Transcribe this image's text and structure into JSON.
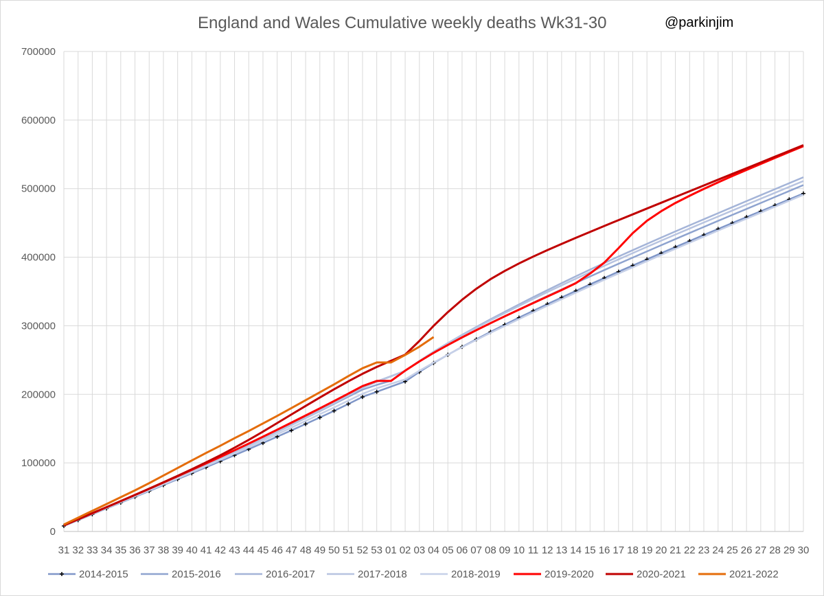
{
  "chart_data": {
    "type": "line",
    "title": "England and Wales Cumulative weekly deaths Wk31-30",
    "annotation": "@parkinjim",
    "categories": [
      "31",
      "32",
      "33",
      "34",
      "35",
      "36",
      "37",
      "38",
      "39",
      "40",
      "41",
      "42",
      "43",
      "44",
      "45",
      "46",
      "47",
      "48",
      "49",
      "50",
      "51",
      "52",
      "53",
      "01",
      "02",
      "03",
      "04",
      "05",
      "06",
      "07",
      "08",
      "09",
      "10",
      "11",
      "12",
      "13",
      "14",
      "15",
      "16",
      "17",
      "18",
      "19",
      "20",
      "21",
      "22",
      "23",
      "24",
      "25",
      "26",
      "27",
      "28",
      "29",
      "30"
    ],
    "xlabel": "",
    "ylabel": "",
    "ylim": [
      0,
      700000
    ],
    "yticks": [
      "0",
      "100000",
      "200000",
      "300000",
      "400000",
      "500000",
      "600000",
      "700000"
    ],
    "grid": true,
    "legend_position": "bottom",
    "series": [
      {
        "name": "2014-2015",
        "color": "#7f96c8",
        "marker": "plus",
        "start": 8000,
        "weekly": [
          8500,
          8500,
          8500,
          8500,
          8500,
          8500,
          8600,
          8600,
          8700,
          8700,
          8800,
          8800,
          8900,
          9000,
          9100,
          9200,
          9300,
          9500,
          9700,
          10000,
          10300,
          7500,
          null,
          15000,
          14000,
          13000,
          12000,
          11500,
          11000,
          10800,
          10500,
          10300,
          10000,
          9800,
          9700,
          9600,
          9400,
          9300,
          9200,
          9100,
          9000,
          9000,
          8900,
          8800,
          8800,
          8700,
          8700,
          8700,
          8600,
          8600,
          8600,
          8600
        ]
      },
      {
        "name": "2015-2016",
        "color": "#8ea3cf",
        "marker": "none",
        "start": 9000,
        "weekly": [
          8700,
          8700,
          8700,
          8800,
          8800,
          8900,
          8900,
          9000,
          9100,
          9200,
          9300,
          9400,
          9500,
          9600,
          9700,
          9900,
          10100,
          10300,
          10500,
          10500,
          10200,
          7000,
          6000,
          15000,
          13500,
          12500,
          11500,
          11000,
          10500,
          10200,
          10000,
          9900,
          9800,
          9700,
          9600,
          9500,
          9400,
          9300,
          9200,
          9100,
          9000,
          9000,
          8900,
          8900,
          8800,
          8800,
          8800,
          8700,
          8700,
          8700,
          8700,
          8700
        ]
      },
      {
        "name": "2016-2017",
        "color": "#a4b4d8",
        "marker": "none",
        "start": 9000,
        "weekly": [
          8700,
          8700,
          8700,
          8800,
          8800,
          8900,
          9000,
          9100,
          9200,
          9300,
          9400,
          9500,
          9600,
          9800,
          10000,
          10200,
          10400,
          10600,
          10800,
          11000,
          11200,
          8000,
          null,
          15500,
          14500,
          13500,
          12500,
          12000,
          11500,
          11200,
          11000,
          10800,
          10500,
          10300,
          10100,
          10000,
          9800,
          9600,
          9500,
          9300,
          9200,
          9100,
          9000,
          8900,
          8900,
          8800,
          8800,
          8800,
          8700,
          8700,
          8700,
          8700
        ]
      },
      {
        "name": "2017-2018",
        "color": "#b7c3e0",
        "marker": "none",
        "start": 8800,
        "weekly": [
          8600,
          8600,
          8700,
          8700,
          8800,
          8800,
          8900,
          9000,
          9100,
          9200,
          9300,
          9400,
          9500,
          9700,
          9900,
          10100,
          10300,
          10600,
          10900,
          11200,
          11500,
          8500,
          null,
          16000,
          14500,
          13500,
          12500,
          11500,
          11000,
          10800,
          10600,
          10400,
          10200,
          10000,
          9800,
          9700,
          9500,
          9400,
          9300,
          9200,
          9100,
          9000,
          8900,
          8800,
          8800,
          8700,
          8700,
          8700,
          8600,
          8600,
          8600,
          8600
        ]
      },
      {
        "name": "2018-2019",
        "color": "#c6d0e8",
        "marker": "none",
        "start": 8500,
        "weekly": [
          8500,
          8500,
          8500,
          8600,
          8600,
          8700,
          8700,
          8800,
          8900,
          9000,
          9100,
          9200,
          9300,
          9400,
          9500,
          9600,
          9700,
          9800,
          9900,
          10000,
          10000,
          8000,
          null,
          13000,
          12500,
          12000,
          11500,
          11000,
          10500,
          10300,
          10100,
          10000,
          9800,
          9700,
          9600,
          9500,
          9400,
          9300,
          9200,
          9100,
          9000,
          9000,
          8900,
          8900,
          8800,
          8800,
          8800,
          8700,
          8700,
          8700,
          8700,
          8700
        ]
      },
      {
        "name": "2019-2020",
        "color": "#ff0000",
        "marker": "none",
        "start": 8800,
        "weekly": [
          8800,
          8800,
          8900,
          8900,
          9000,
          9000,
          9100,
          9200,
          9300,
          9400,
          9500,
          9700,
          9800,
          10000,
          10200,
          10300,
          10400,
          10500,
          10600,
          10800,
          11000,
          7500,
          0,
          15000,
          13500,
          12500,
          11500,
          11000,
          10500,
          10200,
          10000,
          9800,
          9600,
          9500,
          9500,
          10000,
          14000,
          16000,
          21000,
          22000,
          18000,
          14000,
          12000,
          10500,
          10000,
          9500,
          9200,
          9000,
          8800,
          8700,
          8600,
          8500
        ]
      },
      {
        "name": "2020-2021",
        "color": "#c00000",
        "marker": "none",
        "start": 9000,
        "weekly": [
          8800,
          8800,
          8900,
          8900,
          9000,
          9100,
          9200,
          9400,
          9600,
          10000,
          10400,
          11000,
          11500,
          12000,
          12500,
          12500,
          12500,
          12300,
          12000,
          11500,
          11000,
          10000,
          null,
          18000,
          20000,
          22000,
          20000,
          18000,
          16000,
          14000,
          12000,
          11000,
          10000,
          9500,
          9000,
          8800,
          8700,
          8600,
          8500,
          8500,
          8500,
          8400,
          8400,
          8400,
          8400,
          8400,
          8400,
          8400,
          8400,
          8400,
          8400,
          8400
        ]
      },
      {
        "name": "2021-2022",
        "color": "#e46c0a",
        "marker": "none",
        "start": 10000,
        "weekly": [
          10000,
          10000,
          10000,
          10000,
          10000,
          10500,
          11000,
          11000,
          11000,
          11000,
          10500,
          11000,
          10500,
          11000,
          11000,
          11500,
          11500,
          11500,
          11500,
          12000,
          11500,
          8500,
          0,
          11000,
          12000,
          14000
        ]
      }
    ]
  }
}
